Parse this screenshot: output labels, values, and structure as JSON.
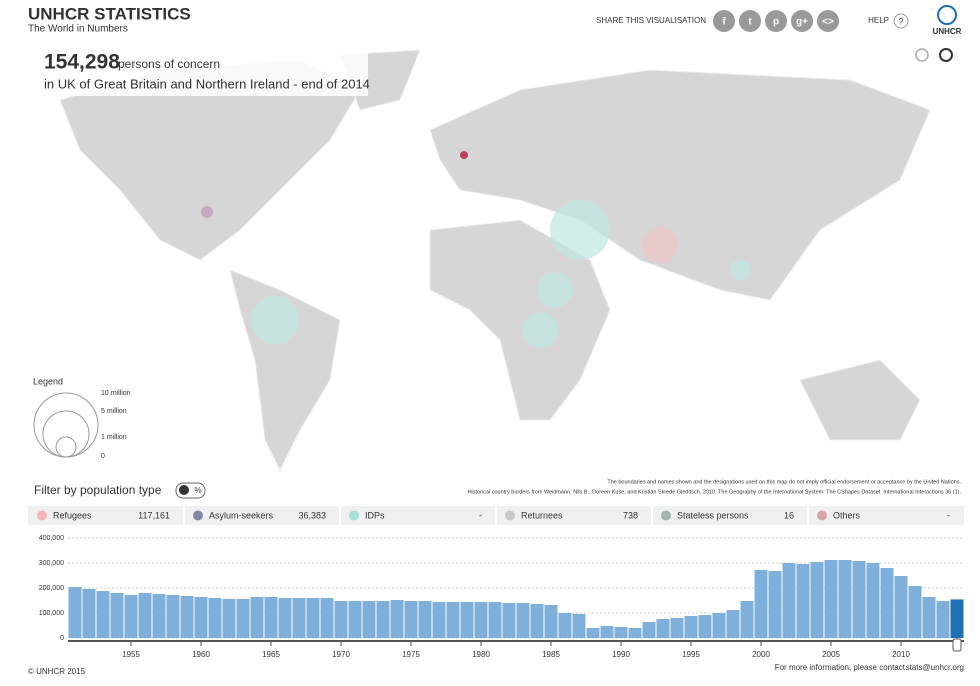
{
  "header": {
    "title": "UNHCR STATISTICS",
    "subtitle": "The World in Numbers",
    "share": "SHARE THIS VISUALISATION",
    "share_icons": [
      "f",
      "t",
      "p",
      "g+",
      "<>"
    ],
    "help": "HELP",
    "help_icon": "?",
    "logo": "UNHCR"
  },
  "headline": {
    "number": "154,298",
    "unit": "persons of concern",
    "place": "in UK of Great Britain and Northern Ireland - end of 2014"
  },
  "legend": {
    "title": "Legend",
    "labels": [
      "10 million",
      "5 million",
      "1 million",
      "0"
    ]
  },
  "disclaimer": [
    "The boundaries and names shown and the designations used on this map do not imply official endorsement or acceptance by the United Nations.",
    "Historical country borders from Weidmann, Nils B., Doreen Kuse, and Kristian Skrede Gleditsch. 2010. The Geography of the International System: The CShapes Dataset. International Interactions 36 (1)."
  ],
  "filter": {
    "title": "Filter by population type",
    "toggle": "%",
    "items": [
      {
        "name": "Refugees",
        "value": "117,161",
        "color": "#f4b6b6"
      },
      {
        "name": "Asylum-seekers",
        "value": "36,383",
        "color": "#7e8aa3"
      },
      {
        "name": "IDPs",
        "value": "-",
        "color": "#a8e0da"
      },
      {
        "name": "Returnees",
        "value": "738",
        "color": "#c8c8c8"
      },
      {
        "name": "Stateless persons",
        "value": "16",
        "color": "#9fb5ad"
      },
      {
        "name": "Others",
        "value": "-",
        "color": "#d8a5a5"
      }
    ]
  },
  "chart_data": {
    "type": "bar",
    "color": "#7fb0dc",
    "highlight_color": "#1f6fb5",
    "selected_x": 2014,
    "x": [
      1951,
      1952,
      1953,
      1954,
      1955,
      1956,
      1957,
      1958,
      1959,
      1960,
      1961,
      1962,
      1963,
      1964,
      1965,
      1966,
      1967,
      1968,
      1969,
      1970,
      1971,
      1972,
      1973,
      1974,
      1975,
      1976,
      1977,
      1978,
      1979,
      1980,
      1981,
      1982,
      1983,
      1984,
      1985,
      1986,
      1987,
      1988,
      1989,
      1990,
      1991,
      1992,
      1993,
      1994,
      1995,
      1996,
      1997,
      1998,
      1999,
      2000,
      2001,
      2002,
      2003,
      2004,
      2005,
      2006,
      2007,
      2008,
      2009,
      2010,
      2011,
      2012,
      2013,
      2014
    ],
    "values": [
      204000,
      196000,
      188000,
      180000,
      172000,
      180000,
      176000,
      172000,
      168000,
      164000,
      160000,
      156000,
      156000,
      164000,
      164000,
      160000,
      160000,
      160000,
      160000,
      148000,
      148000,
      148000,
      148000,
      152000,
      148000,
      148000,
      144000,
      144000,
      144000,
      144000,
      144000,
      140000,
      140000,
      136000,
      132000,
      100000,
      96000,
      40000,
      48000,
      44000,
      40000,
      64000,
      76000,
      80000,
      88000,
      92000,
      100000,
      112000,
      148000,
      272000,
      268000,
      300000,
      296000,
      304000,
      312000,
      312000,
      308000,
      300000,
      280000,
      248000,
      208000,
      164000,
      148000,
      154298
    ],
    "xlim": [
      1950.5,
      2014.5
    ],
    "xticks": [
      1955,
      1960,
      1965,
      1970,
      1975,
      1980,
      1985,
      1990,
      1995,
      2000,
      2005,
      2010
    ],
    "ylim": [
      0,
      400000
    ],
    "yticks": [
      0,
      {
        "value": 100000,
        "label": "100,000"
      },
      {
        "value": 200000,
        "label": "200,000"
      },
      {
        "value": 300000,
        "label": "300,000"
      },
      {
        "value": 400000,
        "label": "400,000"
      }
    ],
    "grid": true
  },
  "footer": {
    "copyright": "© UNHCR 2015",
    "contact": "For more information, please contact",
    "email": "stats@unhcr.org"
  }
}
